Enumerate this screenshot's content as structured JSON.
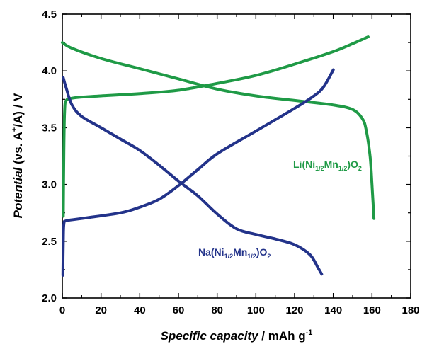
{
  "chart_data": {
    "type": "line",
    "xlabel": {
      "italic": "Specific capacity",
      "rest": " / mAh g",
      "sup": "-1"
    },
    "ylabel": {
      "italic": "Potential",
      "rest": " (vs. A",
      "sup": "+",
      "tail": "/A) / V"
    },
    "xlim": [
      0,
      180
    ],
    "ylim": [
      2.0,
      4.5
    ],
    "xticks": [
      "0",
      "20",
      "40",
      "60",
      "80",
      "100",
      "120",
      "140",
      "160",
      "180"
    ],
    "yticks": [
      "2.0",
      "2.5",
      "3.0",
      "3.5",
      "4.0",
      "4.5"
    ],
    "grid": false,
    "series": [
      {
        "name": "Li(Ni1/2Mn1/2)O2",
        "color": "#1f9a46",
        "charge": [
          [
            0.5,
            2.72
          ],
          [
            0.8,
            3.3
          ],
          [
            1.2,
            3.65
          ],
          [
            2,
            3.74
          ],
          [
            5,
            3.76
          ],
          [
            10,
            3.77
          ],
          [
            20,
            3.78
          ],
          [
            40,
            3.8
          ],
          [
            60,
            3.83
          ],
          [
            80,
            3.89
          ],
          [
            100,
            3.96
          ],
          [
            120,
            4.06
          ],
          [
            140,
            4.17
          ],
          [
            150,
            4.24
          ],
          [
            158,
            4.3
          ]
        ],
        "discharge": [
          [
            0,
            4.25
          ],
          [
            5,
            4.2
          ],
          [
            20,
            4.11
          ],
          [
            40,
            4.02
          ],
          [
            60,
            3.93
          ],
          [
            80,
            3.84
          ],
          [
            100,
            3.78
          ],
          [
            120,
            3.74
          ],
          [
            140,
            3.7
          ],
          [
            150,
            3.66
          ],
          [
            155,
            3.58
          ],
          [
            157,
            3.48
          ],
          [
            159,
            3.25
          ],
          [
            160,
            3.0
          ],
          [
            161,
            2.7
          ]
        ]
      },
      {
        "name": "Na(Ni1/2Mn1/2)O2",
        "color": "#23338a",
        "charge": [
          [
            0.3,
            2.2
          ],
          [
            0.5,
            2.5
          ],
          [
            0.8,
            2.65
          ],
          [
            2,
            2.68
          ],
          [
            10,
            2.7
          ],
          [
            30,
            2.75
          ],
          [
            40,
            2.8
          ],
          [
            50,
            2.87
          ],
          [
            60,
            2.99
          ],
          [
            70,
            3.13
          ],
          [
            80,
            3.27
          ],
          [
            100,
            3.47
          ],
          [
            120,
            3.67
          ],
          [
            130,
            3.78
          ],
          [
            135,
            3.86
          ],
          [
            140,
            4.01
          ]
        ],
        "discharge": [
          [
            0.5,
            3.94
          ],
          [
            2,
            3.85
          ],
          [
            5,
            3.7
          ],
          [
            10,
            3.6
          ],
          [
            20,
            3.5
          ],
          [
            30,
            3.4
          ],
          [
            40,
            3.3
          ],
          [
            50,
            3.17
          ],
          [
            60,
            3.03
          ],
          [
            70,
            2.9
          ],
          [
            80,
            2.74
          ],
          [
            90,
            2.61
          ],
          [
            100,
            2.56
          ],
          [
            110,
            2.52
          ],
          [
            120,
            2.47
          ],
          [
            128,
            2.38
          ],
          [
            132,
            2.27
          ],
          [
            134,
            2.21
          ]
        ]
      }
    ],
    "annotations": [
      {
        "id": "li",
        "base": "Li(Ni",
        "s1": "1/2",
        "mid": "Mn",
        "s2": "1/2",
        "end": ")O",
        "s3": "2",
        "color": "#1f9a46"
      },
      {
        "id": "na",
        "base": "Na(Ni",
        "s1": "1/2",
        "mid": "Mn",
        "s2": "1/2",
        "end": ")O",
        "s3": "2",
        "color": "#23338a"
      }
    ]
  }
}
